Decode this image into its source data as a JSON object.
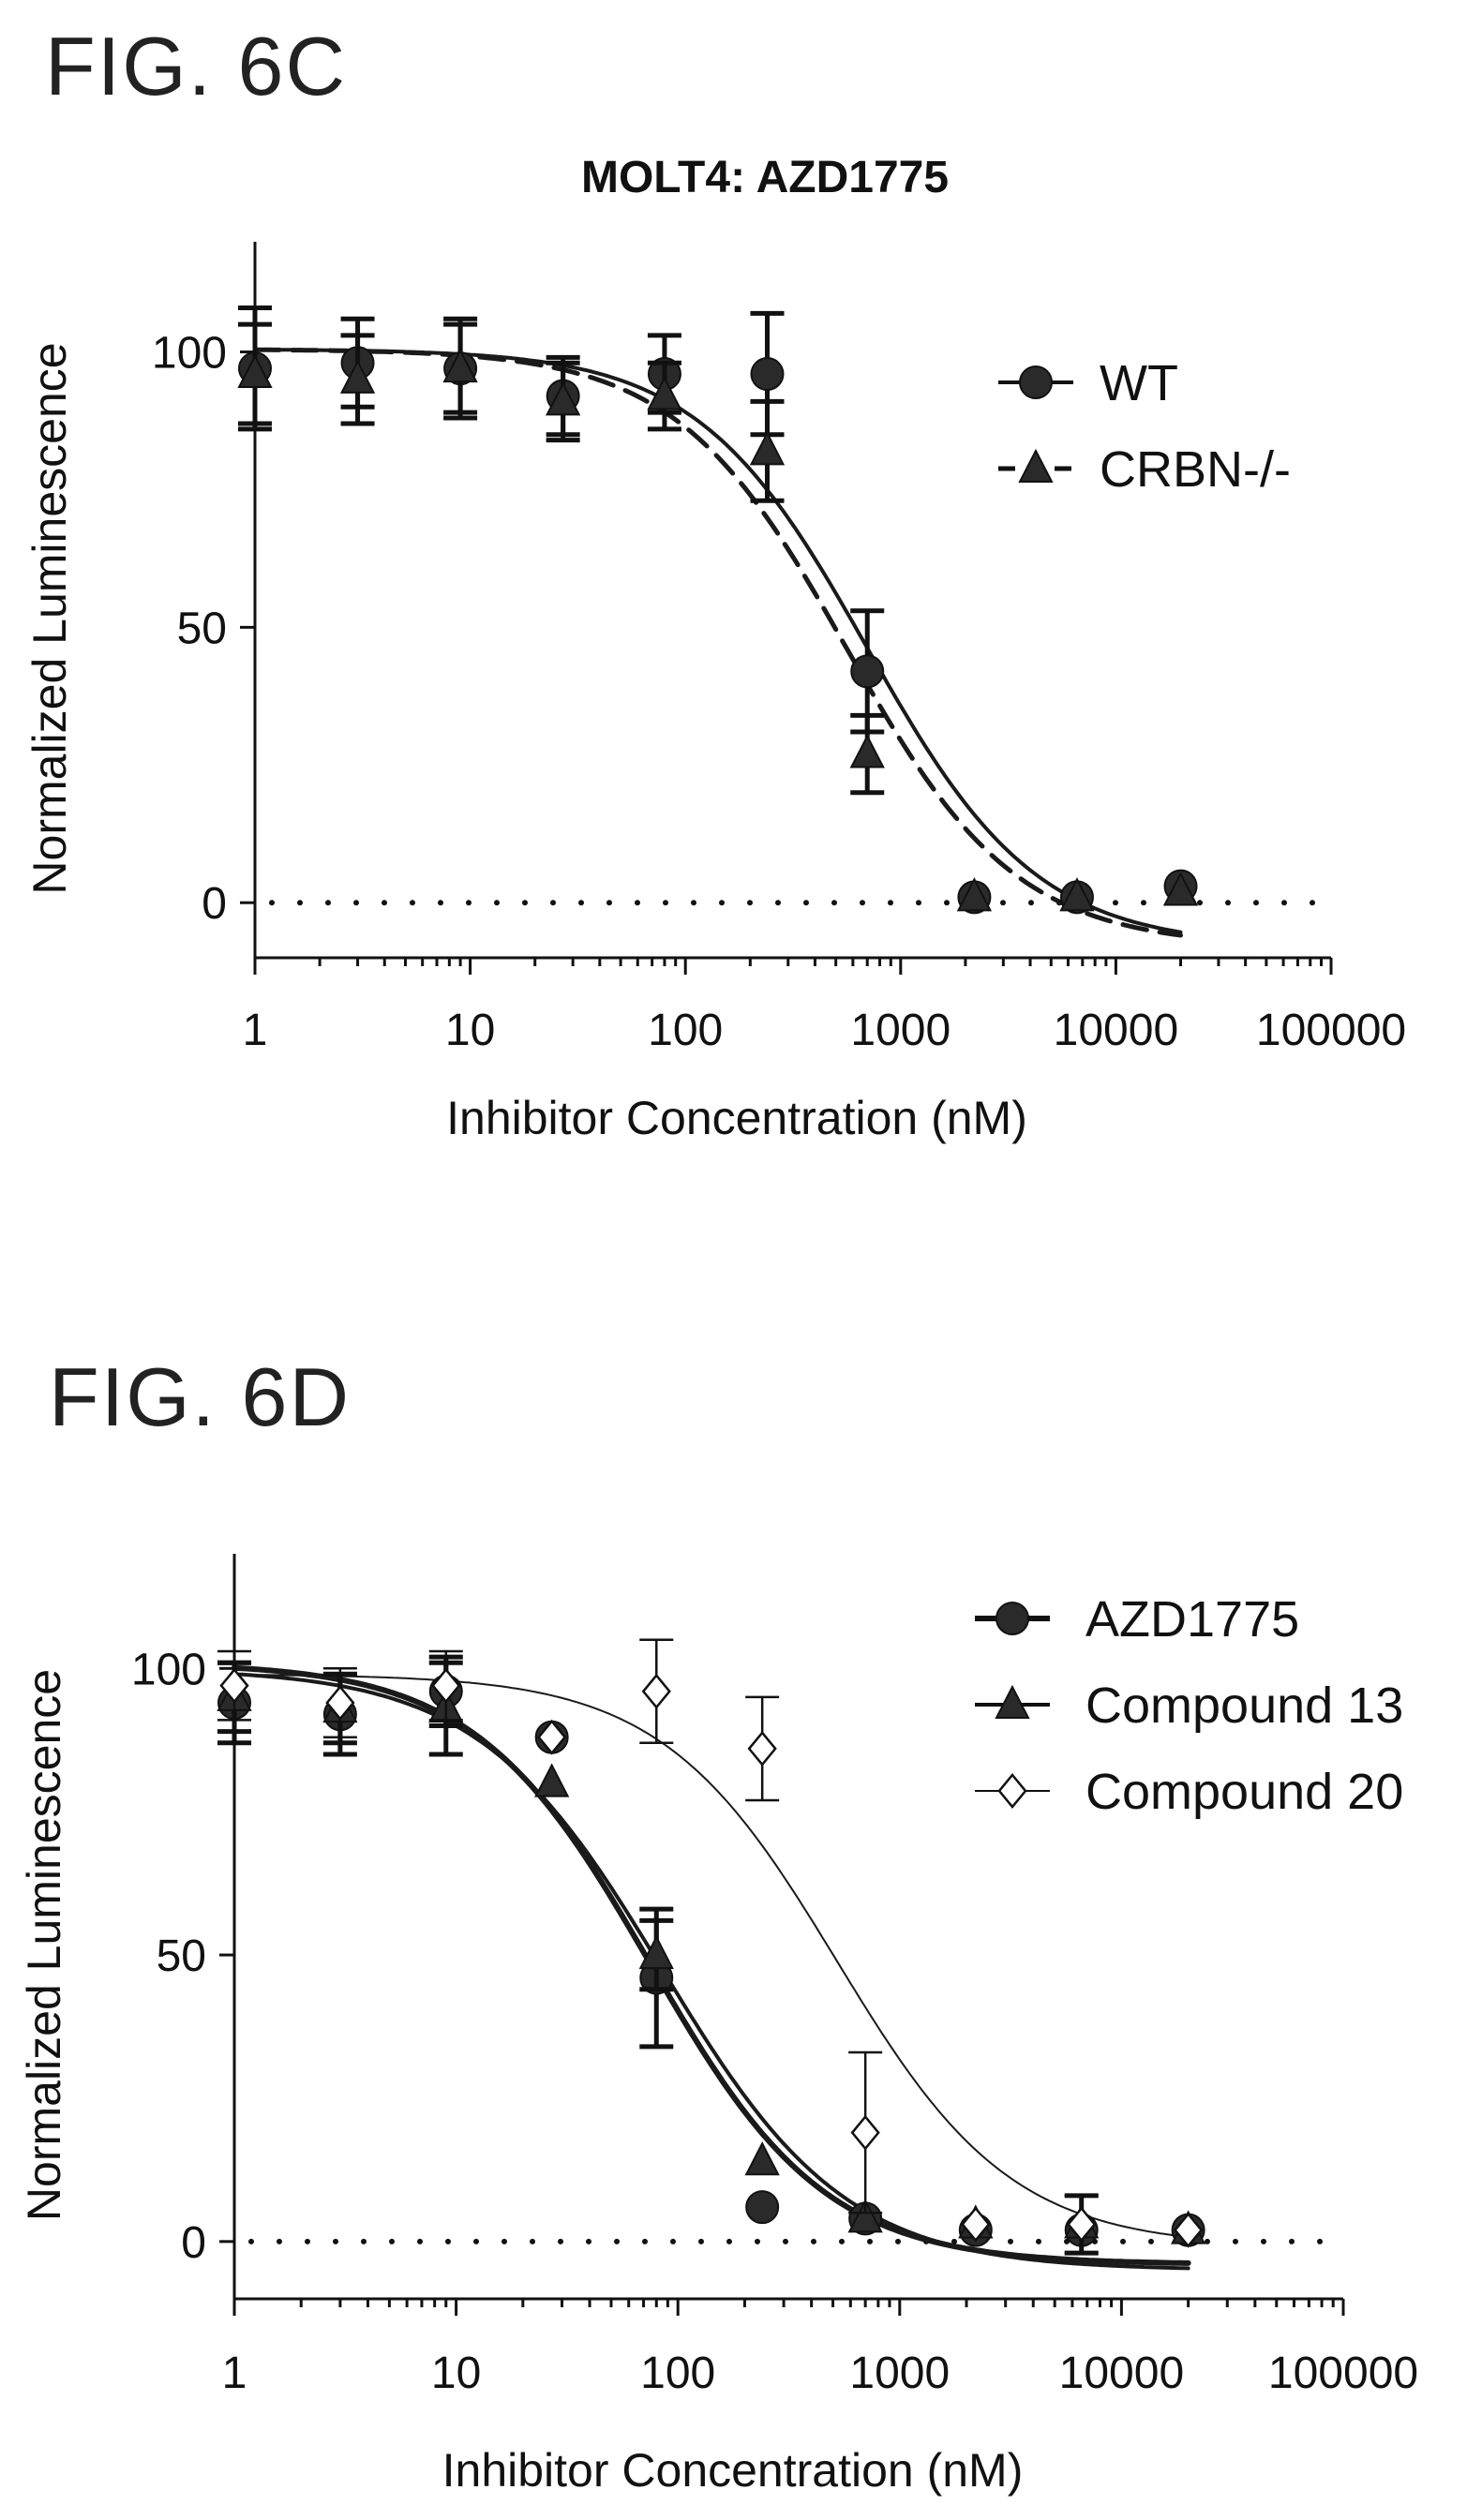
{
  "figures": [
    {
      "label": "FIG. 6C"
    },
    {
      "label": "FIG. 6D"
    }
  ],
  "chart_data": [
    {
      "type": "scatter",
      "title": "MOLT4: AZD1775",
      "xlabel": "Inhibitor Concentration (nM)",
      "ylabel": "Normalized Luminescence",
      "xscale": "log",
      "xlim": [
        1,
        100000
      ],
      "ylim": [
        -10,
        120
      ],
      "x_ticks": [
        1,
        10,
        100,
        1000,
        10000,
        100000
      ],
      "x_tick_labels": [
        "1",
        "10",
        "100",
        "1000",
        "10000",
        "100000"
      ],
      "y_ticks": [
        0,
        50,
        100
      ],
      "y_tick_labels": [
        "0",
        "50",
        "100"
      ],
      "reference_line": {
        "y": 0,
        "style": "dotted"
      },
      "legend": "right",
      "series": [
        {
          "name": "WT",
          "marker": "circle",
          "line": "solid",
          "fit": {
            "top": 100.5,
            "bottom": -8,
            "ic50": 700,
            "hill": 1.1
          },
          "x": [
            1,
            3,
            9,
            27,
            80,
            240,
            700,
            2200,
            6600,
            20000
          ],
          "y": [
            97,
            98,
            97,
            92,
            96,
            96,
            42,
            1,
            1,
            3
          ],
          "err": [
            11,
            8,
            9,
            7,
            7,
            11,
            11,
            0,
            0,
            0
          ]
        },
        {
          "name": "CRBN-/-",
          "marker": "triangle",
          "line": "dashed",
          "fit": {
            "top": 100.5,
            "bottom": -8,
            "ic50": 560,
            "hill": 1.1
          },
          "x": [
            1,
            3,
            9,
            27,
            80,
            240,
            700,
            2200,
            6600,
            20000
          ],
          "y": [
            96,
            95,
            97,
            91,
            92,
            82,
            27,
            1,
            1,
            2
          ],
          "err": [
            9,
            8,
            8,
            7,
            6,
            9,
            7,
            0,
            0,
            0
          ]
        }
      ]
    },
    {
      "type": "scatter",
      "title": "",
      "xlabel": "Inhibitor Concentration (nM)",
      "ylabel": "Normalized Luminescence",
      "xscale": "log",
      "xlim": [
        1,
        100000
      ],
      "ylim": [
        -10,
        120
      ],
      "x_ticks": [
        1,
        10,
        100,
        1000,
        10000,
        100000
      ],
      "x_tick_labels": [
        "1",
        "10",
        "100",
        "1000",
        "10000",
        "100000"
      ],
      "y_ticks": [
        0,
        50,
        100
      ],
      "y_tick_labels": [
        "0",
        "50",
        "100"
      ],
      "reference_line": {
        "y": 0,
        "style": "dotted"
      },
      "legend": "right",
      "series": [
        {
          "name": "AZD1775",
          "marker": "circle",
          "line": "solid-thick",
          "fit": {
            "top": 101,
            "bottom": -4,
            "ic50": 75,
            "hill": 1.1
          },
          "x": [
            1,
            3,
            9,
            27,
            80,
            240,
            700,
            2200,
            6600,
            20000
          ],
          "y": [
            94,
            92,
            96,
            88,
            46,
            6,
            4,
            2,
            2,
            2
          ],
          "err": [
            7,
            7,
            6,
            0,
            12,
            0,
            0,
            0,
            0,
            0
          ]
        },
        {
          "name": "Compound 13",
          "marker": "triangle",
          "line": "solid",
          "fit": {
            "top": 100,
            "bottom": -5,
            "ic50": 85,
            "hill": 1.05
          },
          "x": [
            1,
            3,
            9,
            27,
            80,
            240,
            700,
            2200,
            6600,
            20000
          ],
          "y": [
            95,
            93,
            93,
            80,
            50,
            14,
            4,
            3,
            3,
            2
          ],
          "err": [
            6,
            6,
            8,
            0,
            6,
            0,
            0,
            0,
            5,
            0
          ]
        },
        {
          "name": "Compound 20",
          "marker": "diamond-open",
          "line": "thin",
          "fit": {
            "top": 99,
            "bottom": -1,
            "ic50": 520,
            "hill": 1.1
          },
          "x": [
            1,
            3,
            9,
            27,
            80,
            240,
            700,
            2200,
            6600,
            20000
          ],
          "y": [
            97,
            94,
            97,
            88,
            96,
            86,
            19,
            3,
            3,
            2
          ],
          "err": [
            6,
            6,
            6,
            0,
            9,
            9,
            14,
            0,
            5,
            0
          ]
        }
      ]
    }
  ]
}
